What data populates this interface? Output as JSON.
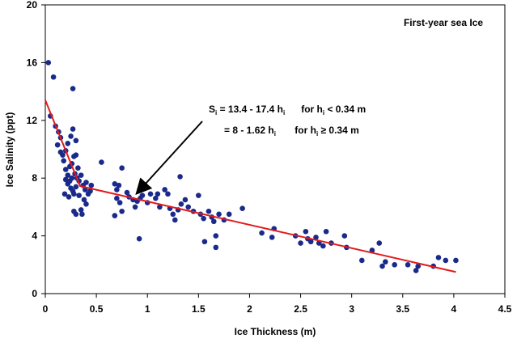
{
  "chart_data": {
    "type": "scatter",
    "title": "First-year sea Ice",
    "xlabel": "Ice Thickness (m)",
    "ylabel": "Ice Salinity (ppt)",
    "color": "#1a2a8a",
    "x": [
      0.03,
      0.08,
      0.27,
      0.05,
      0.1,
      0.13,
      0.15,
      0.12,
      0.15,
      0.17,
      0.2,
      0.22,
      0.25,
      0.27,
      0.3,
      0.18,
      0.2,
      0.22,
      0.24,
      0.26,
      0.28,
      0.3,
      0.32,
      0.2,
      0.22,
      0.25,
      0.27,
      0.3,
      0.33,
      0.35,
      0.37,
      0.39,
      0.4,
      0.42,
      0.44,
      0.19,
      0.23,
      0.28,
      0.3,
      0.35,
      0.38,
      0.36,
      0.4,
      0.45,
      0.33,
      0.26,
      0.29,
      0.31,
      0.24,
      0.28,
      0.55,
      0.68,
      0.7,
      0.72,
      0.75,
      0.7,
      0.73,
      0.68,
      0.75,
      0.8,
      0.82,
      0.86,
      0.88,
      0.9,
      0.93,
      0.95,
      0.92,
      1.0,
      1.03,
      1.08,
      1.1,
      1.12,
      1.17,
      1.2,
      1.22,
      1.25,
      1.27,
      1.3,
      1.32,
      1.33,
      1.37,
      1.4,
      1.45,
      1.5,
      1.52,
      1.55,
      1.56,
      1.6,
      1.63,
      1.65,
      1.67,
      1.67,
      1.7,
      1.75,
      1.8,
      1.93,
      2.12,
      2.22,
      2.24,
      2.45,
      2.5,
      2.55,
      2.57,
      2.6,
      2.65,
      2.68,
      2.72,
      2.75,
      2.8,
      2.93,
      2.95,
      3.1,
      3.2,
      3.27,
      3.3,
      3.33,
      3.42,
      3.55,
      3.63,
      3.65,
      3.8,
      3.85,
      3.92,
      4.02
    ],
    "values": [
      16,
      15,
      14.2,
      12.3,
      11.6,
      11.2,
      10.8,
      10.3,
      9.8,
      9.6,
      9.9,
      10.4,
      10.9,
      11.4,
      10.6,
      9.2,
      8.6,
      8.2,
      8.8,
      9.0,
      9.5,
      9.6,
      8.7,
      7.9,
      7.6,
      7.3,
      7.1,
      7.4,
      7.8,
      8.2,
      7.5,
      7.2,
      7.7,
      6.9,
      7.1,
      6.9,
      6.7,
      5.7,
      5.5,
      5.8,
      6.5,
      5.5,
      6.2,
      7.5,
      6.8,
      8.0,
      8.3,
      8.0,
      7.8,
      6.9,
      9.1,
      7.6,
      7.2,
      7.5,
      8.7,
      6.6,
      6.3,
      5.4,
      5.7,
      7.0,
      6.7,
      6.5,
      6.0,
      6.4,
      6.6,
      6.8,
      3.8,
      6.3,
      6.9,
      6.6,
      6.9,
      6.0,
      7.2,
      6.9,
      5.9,
      5.5,
      5.1,
      5.8,
      8.1,
      6.2,
      6.5,
      6.0,
      5.7,
      6.8,
      5.5,
      5.2,
      3.6,
      5.7,
      5.3,
      5.0,
      4.0,
      3.2,
      5.5,
      5.1,
      5.5,
      5.9,
      4.2,
      3.9,
      4.5,
      4.0,
      3.5,
      4.3,
      3.8,
      3.6,
      3.9,
      3.5,
      3.3,
      4.3,
      3.5,
      4.0,
      3.2,
      2.3,
      3.0,
      3.5,
      1.9,
      2.2,
      2.0,
      2.0,
      1.6,
      1.9,
      1.9,
      2.5,
      2.3,
      2.3
    ],
    "fit": {
      "x": [
        0,
        0.34,
        4.02
      ],
      "values": [
        13.4,
        7.45,
        1.5
      ],
      "color": "#e31a1c"
    },
    "annotation": [
      [
        "S",
        "i",
        " = 13.4 - 17.4 h",
        "i",
        "      for h",
        "i",
        " < 0.34 m"
      ],
      [
        "= 8 - 1.62 h",
        "i",
        "       for h",
        "i",
        " ≥ 0.34 m"
      ]
    ],
    "xlim": [
      0,
      4.5
    ],
    "xticks": [
      0,
      0.5,
      1,
      1.5,
      2,
      2.5,
      3,
      3.5,
      4,
      4.5
    ],
    "ylim": [
      0,
      20
    ],
    "yticks": [
      0,
      4,
      8,
      12,
      16,
      20
    ]
  }
}
